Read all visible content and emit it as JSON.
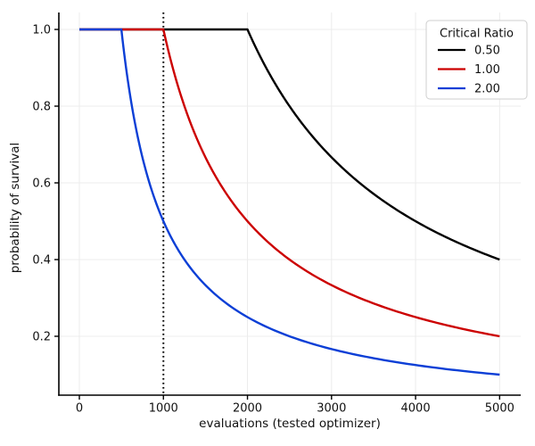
{
  "page": {
    "background": "#ffffff"
  },
  "chart_data": {
    "type": "line",
    "title": "",
    "xlabel": "evaluations (tested optimizer)",
    "ylabel": "probability of survival",
    "xlim": [
      -244,
      5251
    ],
    "ylim": [
      0.0465,
      1.0442
    ],
    "x_data_range": [
      0,
      5000
    ],
    "xticks": [
      0,
      1000,
      2000,
      3000,
      4000,
      5000
    ],
    "yticks": [
      0.2,
      0.4,
      0.6,
      0.8,
      1.0
    ],
    "grid": true,
    "grid_color": "#ececec",
    "spine_color": "#000000",
    "legend": {
      "title": "Critical Ratio",
      "position": "upper-right"
    },
    "annotations": [
      {
        "type": "vline",
        "x": 1000,
        "linestyle": "dotted",
        "color": "#000000"
      }
    ],
    "formula": "probability_of_survival = min(1, critical_x / evaluations)",
    "series": [
      {
        "name": "0.50",
        "color": "#000000",
        "critical_x": 2000,
        "points": [
          [
            0,
            1.0
          ],
          [
            1000,
            1.0
          ],
          [
            2000,
            1.0
          ],
          [
            2500,
            0.8
          ],
          [
            3000,
            0.667
          ],
          [
            3500,
            0.571
          ],
          [
            4000,
            0.5
          ],
          [
            4500,
            0.444
          ],
          [
            5000,
            0.4
          ]
        ]
      },
      {
        "name": "1.00",
        "color": "#cc0000",
        "critical_x": 1000,
        "points": [
          [
            0,
            1.0
          ],
          [
            500,
            1.0
          ],
          [
            1000,
            1.0
          ],
          [
            1250,
            0.8
          ],
          [
            1500,
            0.667
          ],
          [
            2000,
            0.5
          ],
          [
            2500,
            0.4
          ],
          [
            3000,
            0.333
          ],
          [
            3500,
            0.286
          ],
          [
            4000,
            0.25
          ],
          [
            4500,
            0.222
          ],
          [
            5000,
            0.2
          ]
        ]
      },
      {
        "name": "2.00",
        "color": "#0c3fd6",
        "critical_x": 500,
        "points": [
          [
            0,
            1.0
          ],
          [
            500,
            1.0
          ],
          [
            625,
            0.8
          ],
          [
            750,
            0.667
          ],
          [
            1000,
            0.5
          ],
          [
            1250,
            0.4
          ],
          [
            1500,
            0.333
          ],
          [
            2000,
            0.25
          ],
          [
            2500,
            0.2
          ],
          [
            3000,
            0.167
          ],
          [
            3500,
            0.143
          ],
          [
            4000,
            0.125
          ],
          [
            4500,
            0.111
          ],
          [
            5000,
            0.1
          ]
        ]
      }
    ]
  }
}
